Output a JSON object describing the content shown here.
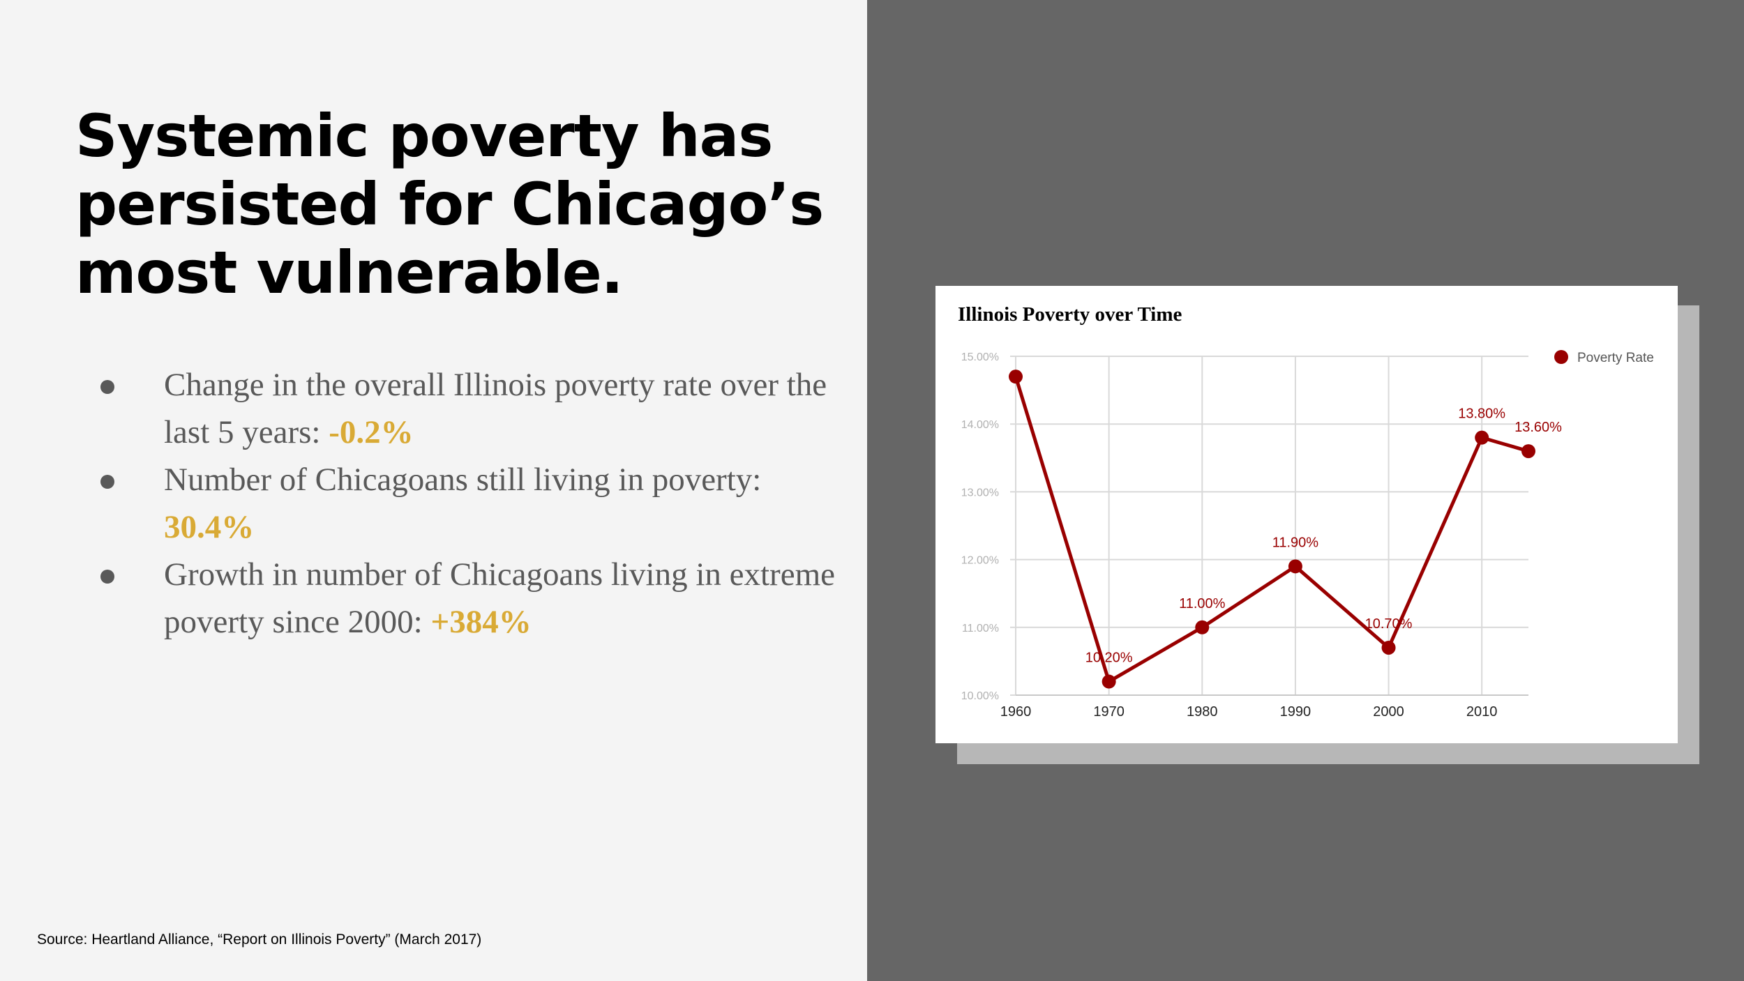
{
  "slide": {
    "headline": [
      "Systemic poverty has",
      "persisted for Chicago’s",
      "most vulnerable."
    ],
    "bullets": [
      {
        "text": "Change in the overall Illinois poverty rate over the last 5 years: ",
        "highlight": "-0.2%"
      },
      {
        "text": "Number of Chicagoans still living in poverty: ",
        "highlight": "30.4%"
      },
      {
        "text": "Growth in number of Chicagoans living in extreme poverty since 2000: ",
        "highlight": "+384%"
      }
    ],
    "source": "Source: Heartland Alliance, “Report on Illinois Poverty” (March 2017)",
    "colors": {
      "left_bg": "#f4f4f4",
      "right_bg": "#666666",
      "highlight": "#d9aa35",
      "line": "#990000"
    }
  },
  "chart_data": {
    "type": "line",
    "title": "Illinois Poverty over Time",
    "xlabel": "",
    "ylabel": "",
    "x_ticks": [
      "1960",
      "1970",
      "1980",
      "1990",
      "2000",
      "2010"
    ],
    "y_ticks": [
      "10.00%",
      "11.00%",
      "12.00%",
      "13.00%",
      "14.00%",
      "15.00%"
    ],
    "ylim": [
      10,
      15
    ],
    "xlim": [
      1960,
      2015
    ],
    "grid": true,
    "legend": "right",
    "series": [
      {
        "name": "Poverty Rate",
        "color": "#990000",
        "x": [
          1960,
          1970,
          1980,
          1990,
          2000,
          2010,
          2015
        ],
        "y": [
          14.7,
          10.2,
          11.0,
          11.9,
          10.7,
          13.8,
          13.6
        ],
        "labels": [
          "",
          "10.20%",
          "11.00%",
          "11.90%",
          "10.70%",
          "13.80%",
          "13.60%"
        ]
      }
    ]
  }
}
